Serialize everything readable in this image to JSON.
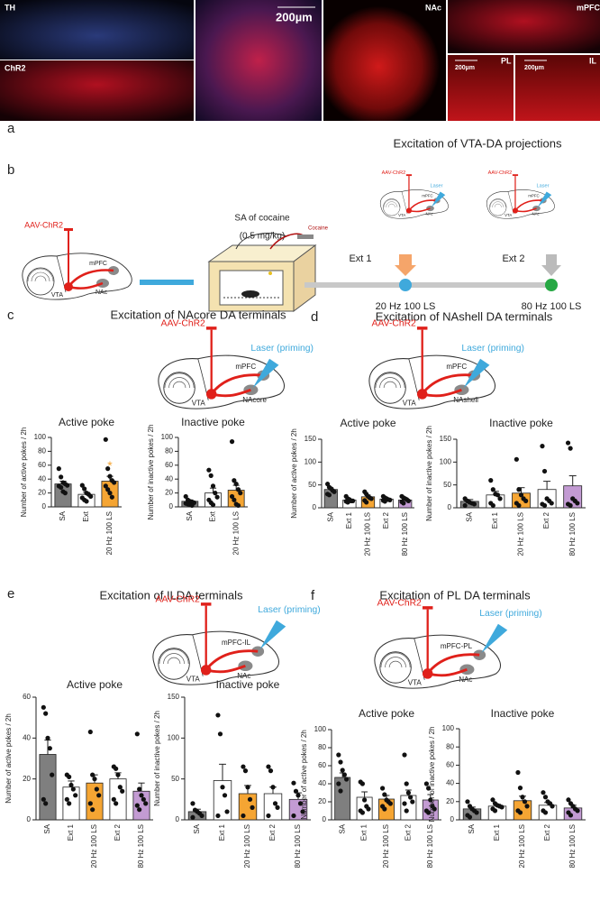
{
  "figure": {
    "a": {
      "letter": "a",
      "labels": [
        "TH",
        "ChR2",
        "200µm",
        "NAc",
        "mPFC",
        "200µm",
        "PL",
        "200µm",
        "IL"
      ]
    },
    "b": {
      "letter": "b",
      "virus": "AAV-ChR2",
      "regions": [
        "mPFC",
        "VTA",
        "NAc"
      ],
      "sa_title": "SA of cocaine",
      "sa_dose": "(0.5 mg/kg)",
      "cocaine": "Cocaine",
      "projection_title": "Excitation of VTA-DA projections",
      "stages": [
        {
          "ext": "Ext 1",
          "virus": "AAV-ChR2",
          "laser": "Laser",
          "regions": [
            "mPFC",
            "VTA",
            "NAc"
          ],
          "stim": "20 Hz 100 LS"
        },
        {
          "ext": "Ext 2",
          "virus": "AAV-ChR2",
          "laser": "Laser",
          "regions": [
            "mPFC",
            "VTA",
            "NAc"
          ],
          "stim": "80 Hz 100 LS"
        }
      ]
    },
    "c": {
      "letter": "c",
      "title": "Excitation of NAcore DA terminals",
      "virus": "AAV-ChR2",
      "laser": "Laser (priming)",
      "regions": [
        "mPFC",
        "VTA",
        "NAcore"
      ]
    },
    "d": {
      "letter": "d",
      "title": "Excitation of NAshell DA terminals",
      "virus": "AAV-ChR2",
      "laser": "Laser (priming)",
      "regions": [
        "mPFC",
        "VTA",
        "NAshell"
      ]
    },
    "e": {
      "letter": "e",
      "title": "Excitation of ILDA terminals",
      "virus": "AAV-ChR2",
      "laser": "Laser (priming)",
      "regions": [
        "mPFC-IL",
        "VTA",
        "NAc"
      ]
    },
    "f": {
      "letter": "f",
      "title": "Excitation of PL DA terminals",
      "virus": "AAV-ChR2",
      "laser": "Laser (priming)",
      "regions": [
        "mPFC-PL",
        "VTA",
        "NAc"
      ]
    }
  },
  "chart_data": [
    {
      "type": "bar",
      "title": "Active poke",
      "ylabel": "Number of active pokes / 2h",
      "categories": [
        "SA",
        "Ext",
        "20 Hz 100 LS"
      ],
      "values": [
        33,
        18,
        37
      ],
      "errors": [
        4,
        3,
        7
      ],
      "colors": [
        "#7f7f7f",
        "#ffffff",
        "#f5a533"
      ],
      "ylim": [
        0,
        100
      ],
      "yticks": [
        0,
        20,
        40,
        60,
        80,
        100
      ],
      "points": [
        [
          55,
          43,
          35,
          33,
          31,
          30,
          28,
          22,
          20
        ],
        [
          31,
          26,
          20,
          18,
          15,
          13,
          10,
          8
        ],
        [
          97,
          55,
          44,
          38,
          35,
          30,
          25,
          20,
          14
        ]
      ],
      "annotations": [
        {
          "text": "*",
          "x": "20 Hz 100 LS",
          "y": 62,
          "color": "#f5a533"
        }
      ]
    },
    {
      "type": "bar",
      "title": "Inactive poke",
      "ylabel": "Number of inactive pokes / 2h",
      "categories": [
        "SA",
        "Ext",
        "20 Hz 100 LS"
      ],
      "values": [
        8,
        20,
        24
      ],
      "errors": [
        2,
        7,
        7
      ],
      "colors": [
        "#7f7f7f",
        "#ffffff",
        "#f5a533"
      ],
      "ylim": [
        0,
        100
      ],
      "yticks": [
        0,
        20,
        40,
        60,
        80,
        100
      ],
      "points": [
        [
          15,
          10,
          8,
          7,
          6,
          5,
          4,
          3,
          2
        ],
        [
          53,
          45,
          30,
          20,
          14,
          10,
          6,
          3
        ],
        [
          94,
          38,
          33,
          25,
          20,
          15,
          10,
          4,
          2
        ]
      ]
    },
    {
      "type": "bar",
      "title": "Active poke",
      "ylabel": "Number of active pokes / 2h",
      "categories": [
        "SA",
        "Ext 1",
        "20 Hz 100 LS",
        "Ext 2",
        "80 Hz 100 LS"
      ],
      "values": [
        40,
        17,
        24,
        19,
        17
      ],
      "errors": [
        4,
        2,
        4,
        2,
        3
      ],
      "colors": [
        "#7f7f7f",
        "#ffffff",
        "#f5a533",
        "#ffffff",
        "#c39bd3"
      ],
      "ylim": [
        0,
        150
      ],
      "yticks": [
        0,
        50,
        100,
        150
      ],
      "points": [
        [
          52,
          45,
          42,
          38,
          35,
          30,
          28
        ],
        [
          25,
          20,
          18,
          15,
          15,
          14,
          12
        ],
        [
          35,
          30,
          25,
          22,
          20,
          16,
          12
        ],
        [
          25,
          22,
          20,
          18,
          17,
          16,
          14
        ],
        [
          25,
          22,
          20,
          18,
          15,
          13,
          10
        ]
      ]
    },
    {
      "type": "bar",
      "title": "Inactive poke",
      "ylabel": "Number of inactive pokes / 2h",
      "categories": [
        "SA",
        "Ext 1",
        "20 Hz 100 LS",
        "Ext 2",
        "80 Hz 100 LS"
      ],
      "values": [
        14,
        28,
        32,
        40,
        48
      ],
      "errors": [
        4,
        8,
        12,
        18,
        22
      ],
      "colors": [
        "#7f7f7f",
        "#ffffff",
        "#f5a533",
        "#ffffff",
        "#c39bd3"
      ],
      "ylim": [
        0,
        150
      ],
      "yticks": [
        0,
        50,
        100,
        150
      ],
      "points": [
        [
          20,
          15,
          12,
          10,
          8,
          5
        ],
        [
          60,
          40,
          30,
          28,
          20,
          10,
          5
        ],
        [
          106,
          40,
          28,
          20,
          15,
          10,
          5
        ],
        [
          135,
          80,
          20,
          15,
          10,
          8,
          5
        ],
        [
          142,
          130,
          20,
          15,
          10,
          8,
          5
        ]
      ]
    },
    {
      "type": "bar",
      "title": "Active poke",
      "ylabel": "Number of active pokes / 2h",
      "categories": [
        "SA",
        "Ext 1",
        "20 Hz 100 LS",
        "Ext 2",
        "80 Hz 100 LS"
      ],
      "values": [
        32,
        16,
        18,
        20,
        14
      ],
      "errors": [
        7,
        3,
        4,
        3,
        4
      ],
      "colors": [
        "#7f7f7f",
        "#ffffff",
        "#f5a533",
        "#ffffff",
        "#c39bd3"
      ],
      "ylim": [
        0,
        60
      ],
      "yticks": [
        0,
        20,
        40,
        60
      ],
      "points": [
        [
          55,
          52,
          40,
          35,
          22,
          10,
          8
        ],
        [
          22,
          21,
          17,
          15,
          12,
          10,
          8
        ],
        [
          43,
          22,
          20,
          15,
          12,
          8,
          5
        ],
        [
          26,
          25,
          22,
          16,
          14,
          10,
          8
        ],
        [
          42,
          15,
          12,
          10,
          8,
          7,
          5
        ]
      ]
    },
    {
      "type": "bar",
      "title": "Inactive poke",
      "ylabel": "Number of inactive pokes / 2h",
      "categories": [
        "SA",
        "Ext 1",
        "20 Hz 100 LS",
        "Ext 2",
        "80 Hz 100 LS"
      ],
      "values": [
        10,
        48,
        32,
        32,
        25
      ],
      "errors": [
        3,
        20,
        10,
        8,
        8
      ],
      "colors": [
        "#7f7f7f",
        "#ffffff",
        "#f5a533",
        "#ffffff",
        "#c39bd3"
      ],
      "ylim": [
        0,
        150
      ],
      "yticks": [
        0,
        50,
        100,
        150
      ],
      "points": [
        [
          20,
          12,
          10,
          8,
          5,
          3
        ],
        [
          128,
          105,
          40,
          30,
          10,
          5
        ],
        [
          65,
          60,
          40,
          25,
          15,
          5
        ],
        [
          65,
          60,
          40,
          20,
          15,
          5
        ],
        [
          45,
          35,
          30,
          20,
          10,
          5
        ]
      ]
    },
    {
      "type": "bar",
      "title": "Active poke",
      "ylabel": "Number of active pokes / 2h",
      "categories": [
        "SA",
        "Ext 1",
        "20 Hz 100 LS",
        "Ext 2",
        "80 Hz 100 LS"
      ],
      "values": [
        47,
        25,
        23,
        27,
        22
      ],
      "errors": [
        5,
        6,
        4,
        6,
        6
      ],
      "colors": [
        "#7f7f7f",
        "#ffffff",
        "#f5a533",
        "#ffffff",
        "#c39bd3"
      ],
      "ylim": [
        0,
        100
      ],
      "yticks": [
        0,
        20,
        40,
        60,
        80,
        100
      ],
      "points": [
        [
          72,
          64,
          55,
          50,
          45,
          40,
          32
        ],
        [
          42,
          40,
          22,
          15,
          12,
          10,
          8
        ],
        [
          35,
          28,
          22,
          20,
          18,
          15,
          12
        ],
        [
          72,
          40,
          30,
          25,
          20,
          18,
          10
        ],
        [
          40,
          35,
          22,
          15,
          12,
          10,
          8
        ]
      ]
    },
    {
      "type": "bar",
      "title": "Inactive poke",
      "ylabel": "Number of inactive pokes / 2h",
      "categories": [
        "SA",
        "Ext 1",
        "20 Hz 100 LS",
        "Ext 2",
        "80 Hz 100 LS"
      ],
      "values": [
        12,
        15,
        21,
        16,
        13
      ],
      "errors": [
        2,
        2,
        5,
        3,
        3
      ],
      "colors": [
        "#7f7f7f",
        "#ffffff",
        "#f5a533",
        "#ffffff",
        "#c39bd3"
      ],
      "ylim": [
        0,
        100
      ],
      "yticks": [
        0,
        20,
        40,
        60,
        80,
        100
      ],
      "points": [
        [
          20,
          15,
          12,
          10,
          8,
          5,
          3
        ],
        [
          22,
          18,
          16,
          15,
          14,
          12,
          10
        ],
        [
          52,
          35,
          25,
          20,
          15,
          10,
          8
        ],
        [
          30,
          25,
          20,
          18,
          15,
          10,
          8
        ],
        [
          22,
          18,
          15,
          12,
          10,
          8,
          5
        ]
      ]
    }
  ]
}
